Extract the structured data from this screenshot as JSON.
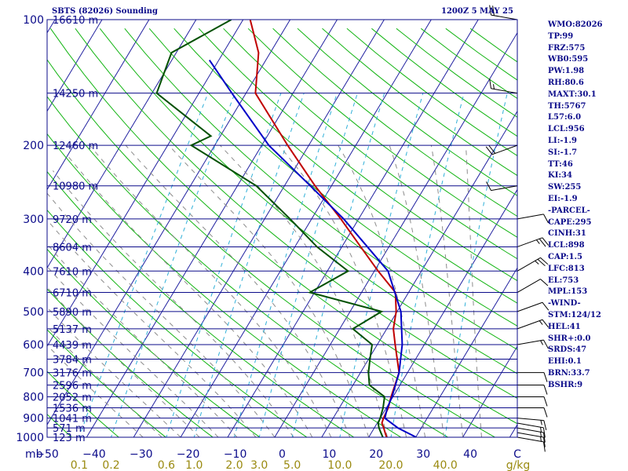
{
  "header": {
    "station": "SBTS (82026) Sounding",
    "valid": "1200Z  5 MAY 25"
  },
  "indices": [
    "WMO:82026",
    "TP:99",
    "FRZ:575",
    "WB0:595",
    "PW:1.98",
    "RH:80.6",
    "MAXT:30.1",
    "TH:5767",
    "L57:6.0",
    "LCL:956",
    "LI:-1.9",
    "SI:-1.7",
    "TT:46",
    "KI:34",
    "SW:255",
    "EI:-1.9",
    "-PARCEL-",
    "CAPE:295",
    "CINH:31",
    "LCL:898",
    "CAP:1.5",
    "LFC:813",
    "EL:753",
    "MPL:153",
    "-WIND-",
    "STM:124/12",
    "HEL:41",
    "SHR+:0.0",
    "SRDS:47",
    "EHI:0.1",
    "BRN:33.7",
    "BSHR:9"
  ],
  "colors": {
    "frame": "#0b0b8a",
    "isobar": "#0b0b8a",
    "isotherm": "#2020a0",
    "dry_adiabat": "#12b412",
    "moist_adiabat": "#8c8c8c",
    "mixing_ratio": "#30b0d8",
    "temperature": "#c00000",
    "dewpoint": "#005000",
    "parcel": "#0000c8",
    "wind": "#000000",
    "axis_text": "#0b0b8a",
    "mixing_text": "#9a8a10"
  },
  "chart_data": {
    "type": "line",
    "title": "SBTS (82026) Sounding",
    "subtitle": "1200Z  5 MAY 25",
    "xlabel": "",
    "ylabel": "mb",
    "x_unit_label": "C",
    "xlim": [
      -50,
      50
    ],
    "ylim": [
      1000,
      100
    ],
    "y_scale": "log",
    "pressure_ticks": [
      100,
      200,
      300,
      400,
      500,
      600,
      700,
      800,
      900,
      1000
    ],
    "temperature_ticks": [
      -50,
      -40,
      -30,
      -20,
      -10,
      0,
      10,
      20,
      30,
      40
    ],
    "height_labels": [
      {
        "p": 100,
        "label": "16610 m"
      },
      {
        "p": 150,
        "label": "14250 m"
      },
      {
        "p": 200,
        "label": "12460 m"
      },
      {
        "p": 250,
        "label": "10980 m"
      },
      {
        "p": 300,
        "label": "9720 m"
      },
      {
        "p": 350,
        "label": "8604 m"
      },
      {
        "p": 400,
        "label": "7610 m"
      },
      {
        "p": 450,
        "label": "6710 m"
      },
      {
        "p": 500,
        "label": "5890 m"
      },
      {
        "p": 550,
        "label": "5137 m"
      },
      {
        "p": 600,
        "label": "4439 m"
      },
      {
        "p": 650,
        "label": "3784 m"
      },
      {
        "p": 700,
        "label": "3176 m"
      },
      {
        "p": 750,
        "label": "2596 m"
      },
      {
        "p": 800,
        "label": "2052 m"
      },
      {
        "p": 850,
        "label": "1536 m"
      },
      {
        "p": 900,
        "label": "1041 m"
      },
      {
        "p": 950,
        "label": "571 m"
      },
      {
        "p": 1000,
        "label": "123 m"
      }
    ],
    "mixing_ratio_labels": [
      0.1,
      0.2,
      0.6,
      1.0,
      2.0,
      3.0,
      5.0,
      10.0,
      20.0,
      40.0
    ],
    "mixing_ratio_unit": "g/kg",
    "series": [
      {
        "id": "temperature",
        "points": [
          [
            1000,
            23.8
          ],
          [
            975,
            22.9
          ],
          [
            950,
            22.0
          ],
          [
            925,
            21.0
          ],
          [
            900,
            20.7
          ],
          [
            850,
            20.4
          ],
          [
            800,
            19.6
          ],
          [
            700,
            18.2
          ],
          [
            600,
            13.8
          ],
          [
            550,
            11.4
          ],
          [
            500,
            9.8
          ],
          [
            450,
            7.2
          ],
          [
            400,
            0.8
          ],
          [
            350,
            -6.0
          ],
          [
            300,
            -13.8
          ],
          [
            250,
            -23.5
          ],
          [
            200,
            -34.5
          ],
          [
            150,
            -48.0
          ],
          [
            120,
            -52.5
          ],
          [
            100,
            -58.5
          ]
        ]
      },
      {
        "id": "dewpoint",
        "points": [
          [
            1000,
            23.0
          ],
          [
            975,
            22.0
          ],
          [
            950,
            21.0
          ],
          [
            925,
            20.2
          ],
          [
            900,
            20.0
          ],
          [
            850,
            19.3
          ],
          [
            800,
            18.2
          ],
          [
            750,
            13.5
          ],
          [
            700,
            11.7
          ],
          [
            650,
            10.3
          ],
          [
            600,
            8.9
          ],
          [
            550,
            2.8
          ],
          [
            500,
            6.7
          ],
          [
            450,
            -11.0
          ],
          [
            400,
            -5.6
          ],
          [
            350,
            -15.3
          ],
          [
            300,
            -24.6
          ],
          [
            250,
            -36.0
          ],
          [
            200,
            -55.0
          ],
          [
            190,
            -52.0
          ],
          [
            150,
            -69.0
          ],
          [
            120,
            -71.0
          ],
          [
            100,
            -62.5
          ]
        ]
      },
      {
        "id": "parcel",
        "points": [
          [
            1000,
            30.1
          ],
          [
            950,
            25.0
          ],
          [
            900,
            21.0
          ],
          [
            850,
            20.2
          ],
          [
            800,
            19.8
          ],
          [
            700,
            18.2
          ],
          [
            600,
            15.3
          ],
          [
            500,
            10.8
          ],
          [
            400,
            2.9
          ],
          [
            300,
            -13.2
          ],
          [
            250,
            -24.5
          ],
          [
            200,
            -38.5
          ],
          [
            150,
            -53.0
          ],
          [
            125,
            -62.0
          ]
        ]
      }
    ],
    "wind_barbs": [
      {
        "p": 1000,
        "dir": 100,
        "kt": 12
      },
      {
        "p": 975,
        "dir": 100,
        "kt": 15
      },
      {
        "p": 950,
        "dir": 100,
        "kt": 15
      },
      {
        "p": 925,
        "dir": 100,
        "kt": 15
      },
      {
        "p": 900,
        "dir": 95,
        "kt": 15
      },
      {
        "p": 850,
        "dir": 90,
        "kt": 10
      },
      {
        "p": 800,
        "dir": 90,
        "kt": 10
      },
      {
        "p": 750,
        "dir": 90,
        "kt": 10
      },
      {
        "p": 700,
        "dir": 90,
        "kt": 10
      },
      {
        "p": 600,
        "dir": 80,
        "kt": 15
      },
      {
        "p": 550,
        "dir": 70,
        "kt": 15
      },
      {
        "p": 500,
        "dir": 70,
        "kt": 10
      },
      {
        "p": 450,
        "dir": 60,
        "kt": 10
      },
      {
        "p": 400,
        "dir": 60,
        "kt": 25
      },
      {
        "p": 350,
        "dir": 70,
        "kt": 25
      },
      {
        "p": 300,
        "dir": 80,
        "kt": 10
      },
      {
        "p": 250,
        "dir": 260,
        "kt": 10
      },
      {
        "p": 200,
        "dir": 250,
        "kt": 20
      },
      {
        "p": 150,
        "dir": 280,
        "kt": 15
      },
      {
        "p": 100,
        "dir": 280,
        "kt": 20
      }
    ],
    "grid": true,
    "legend": "none"
  }
}
